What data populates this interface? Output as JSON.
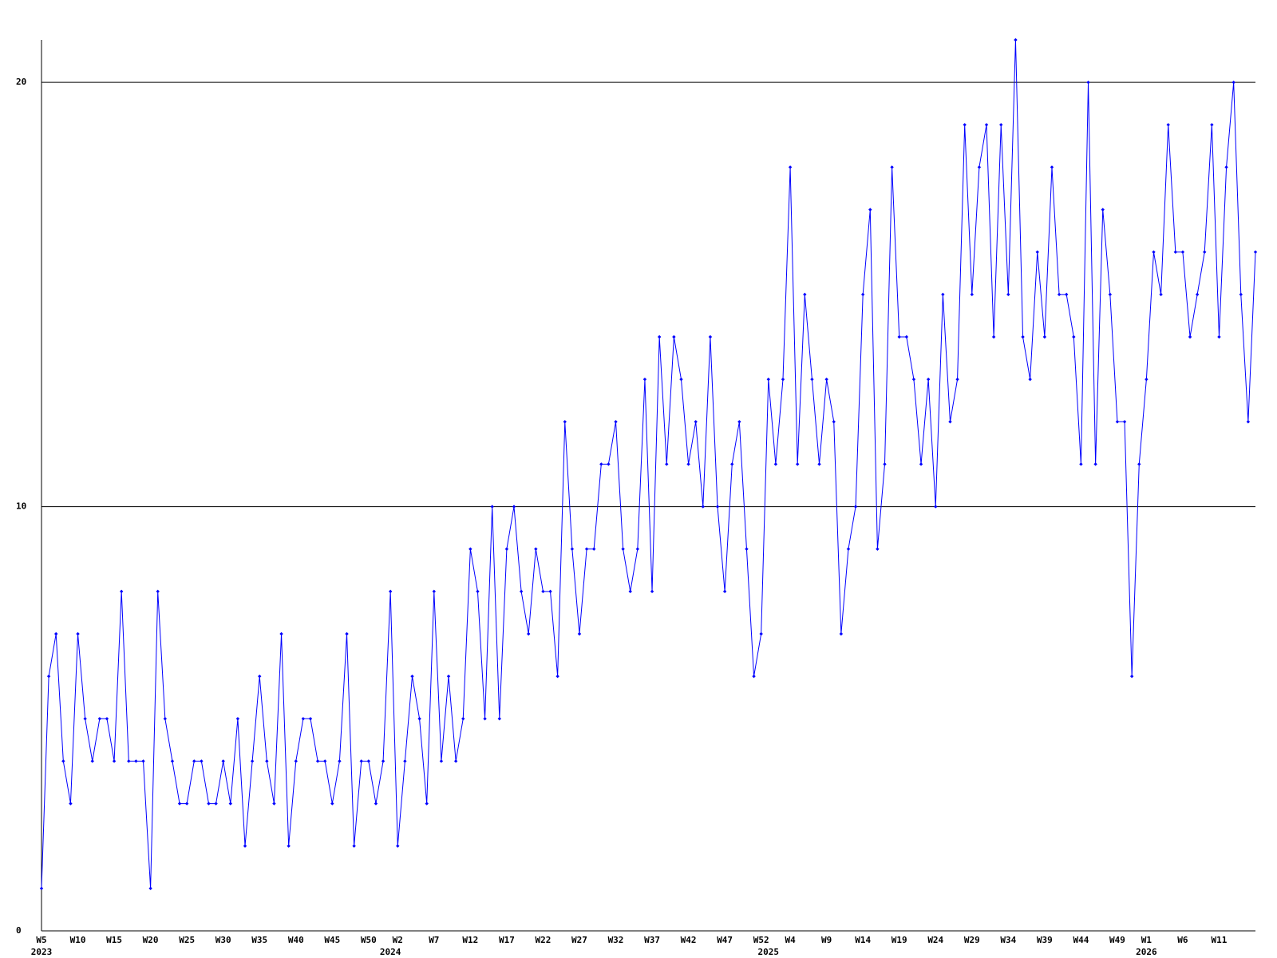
{
  "chart_data": {
    "type": "line",
    "color": "#0000ff",
    "grid": true,
    "ylim": [
      0,
      21
    ],
    "yticks": [
      0,
      10,
      20
    ],
    "categories": [
      "W5",
      null,
      null,
      null,
      null,
      "W10",
      null,
      null,
      null,
      null,
      "W15",
      null,
      null,
      null,
      null,
      "W20",
      null,
      null,
      null,
      null,
      "W25",
      null,
      null,
      null,
      null,
      "W30",
      null,
      null,
      null,
      null,
      "W35",
      null,
      null,
      null,
      null,
      "W40",
      null,
      null,
      null,
      null,
      "W45",
      null,
      null,
      null,
      null,
      "W50",
      null,
      null,
      null,
      "W2",
      null,
      null,
      null,
      null,
      "W7",
      null,
      null,
      null,
      null,
      "W12",
      null,
      null,
      null,
      null,
      "W17",
      null,
      null,
      null,
      null,
      "W22",
      null,
      null,
      null,
      null,
      "W27",
      null,
      null,
      null,
      null,
      "W32",
      null,
      null,
      null,
      null,
      "W37",
      null,
      null,
      null,
      null,
      "W42",
      null,
      null,
      null,
      null,
      "W47",
      null,
      null,
      null,
      null,
      "W52",
      null,
      null,
      null,
      "W4",
      null,
      null,
      null,
      null,
      "W9",
      null,
      null,
      null,
      null,
      "W14",
      null,
      null,
      null,
      null,
      "W19",
      null,
      null,
      null,
      null,
      "W24",
      null,
      null,
      null,
      null,
      "W29",
      null,
      null,
      null,
      null,
      "W34",
      null,
      null,
      null,
      null,
      "W39",
      null,
      null,
      null,
      null,
      "W44",
      null,
      null,
      null,
      null,
      "W49",
      null,
      null,
      null,
      "W1",
      null,
      null,
      null,
      null,
      "W6",
      null,
      null,
      null,
      null,
      "W11",
      null,
      null,
      null,
      null,
      null
    ],
    "x_sublabels": [
      "2023",
      null,
      null,
      null,
      null,
      null,
      null,
      null,
      null,
      null,
      null,
      null,
      null,
      null,
      null,
      null,
      null,
      null,
      null,
      null,
      null,
      null,
      null,
      null,
      null,
      null,
      null,
      null,
      null,
      null,
      null,
      null,
      null,
      null,
      null,
      null,
      null,
      null,
      null,
      null,
      null,
      null,
      null,
      null,
      null,
      null,
      null,
      null,
      "2024",
      null,
      null,
      null,
      null,
      null,
      null,
      null,
      null,
      null,
      null,
      null,
      null,
      null,
      null,
      null,
      null,
      null,
      null,
      null,
      null,
      null,
      null,
      null,
      null,
      null,
      null,
      null,
      null,
      null,
      null,
      null,
      null,
      null,
      null,
      null,
      null,
      null,
      null,
      null,
      null,
      null,
      null,
      null,
      null,
      null,
      null,
      null,
      null,
      null,
      null,
      null,
      "2025",
      null,
      null,
      null,
      null,
      null,
      null,
      null,
      null,
      null,
      null,
      null,
      null,
      null,
      null,
      null,
      null,
      null,
      null,
      null,
      null,
      null,
      null,
      null,
      null,
      null,
      null,
      null,
      null,
      null,
      null,
      null,
      null,
      null,
      null,
      null,
      null,
      null,
      null,
      null,
      null,
      null,
      null,
      null,
      null,
      null,
      null,
      null,
      null,
      null,
      null,
      null,
      "2026",
      null,
      null,
      null,
      null,
      null,
      null,
      null,
      null,
      null,
      null,
      null,
      null,
      null,
      null,
      null
    ],
    "values": [
      1,
      6,
      7,
      4,
      3,
      7,
      5,
      4,
      5,
      5,
      4,
      8,
      4,
      4,
      4,
      1,
      8,
      5,
      4,
      3,
      3,
      4,
      4,
      3,
      3,
      4,
      3,
      5,
      2,
      4,
      6,
      4,
      3,
      7,
      2,
      4,
      5,
      5,
      4,
      4,
      3,
      4,
      7,
      2,
      4,
      4,
      3,
      4,
      8,
      2,
      4,
      6,
      5,
      3,
      8,
      4,
      6,
      4,
      5,
      9,
      8,
      5,
      10,
      5,
      9,
      10,
      8,
      7,
      9,
      8,
      8,
      6,
      12,
      9,
      7,
      9,
      9,
      11,
      11,
      12,
      9,
      8,
      9,
      13,
      8,
      14,
      11,
      14,
      13,
      11,
      12,
      10,
      14,
      10,
      8,
      11,
      12,
      9,
      6,
      7,
      13,
      11,
      13,
      18,
      11,
      15,
      13,
      11,
      13,
      12,
      7,
      9,
      10,
      15,
      17,
      9,
      11,
      18,
      14,
      14,
      13,
      11,
      13,
      10,
      15,
      12,
      13,
      19,
      15,
      18,
      19,
      14,
      19,
      15,
      21,
      14,
      13,
      16,
      14,
      18,
      15,
      15,
      14,
      11,
      20,
      11,
      17,
      15,
      12,
      12,
      6,
      11,
      13,
      16,
      15,
      19,
      16,
      16,
      14,
      15,
      16,
      19,
      14,
      18,
      20,
      15,
      12,
      16
    ]
  }
}
